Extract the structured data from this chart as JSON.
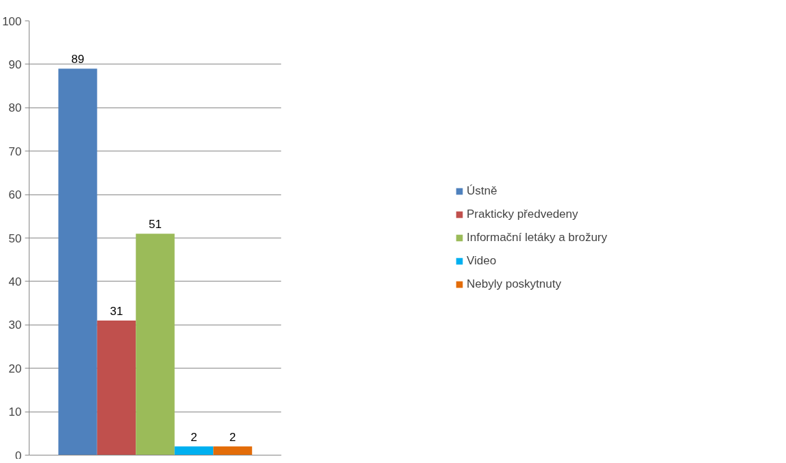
{
  "chart_data": {
    "type": "bar",
    "categories": [
      null
    ],
    "series": [
      {
        "name": "Ústně",
        "color": "#4f81bd",
        "values": [
          89
        ]
      },
      {
        "name": "Prakticky předvedeny",
        "color": "#c0504d",
        "values": [
          31
        ]
      },
      {
        "name": "Informační letáky a brožury",
        "color": "#9bbb59",
        "values": [
          51
        ]
      },
      {
        "name": "Video",
        "color": "#00b0f0",
        "values": [
          2
        ]
      },
      {
        "name": "Nebyly poskytnuty",
        "color": "#e36c09",
        "values": [
          2
        ]
      }
    ],
    "ylim": [
      0,
      100
    ],
    "yticks": [
      0,
      10,
      20,
      30,
      40,
      50,
      60,
      70,
      80,
      90,
      100
    ],
    "grid": "y",
    "legend": "right",
    "data_labels": true
  }
}
